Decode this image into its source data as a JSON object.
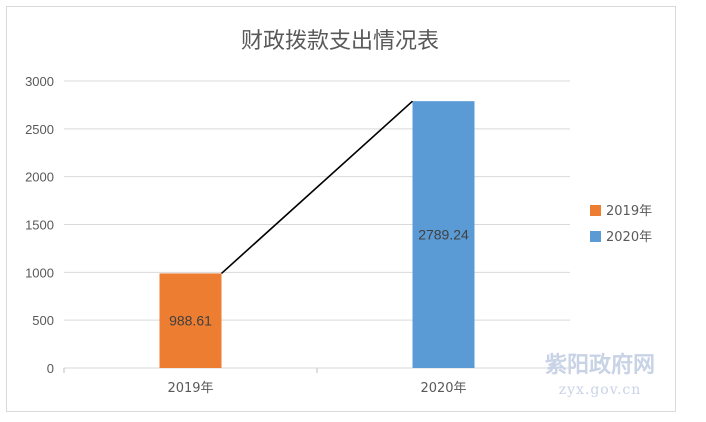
{
  "chart_data": {
    "type": "bar",
    "title": "财政拨款支出情况表",
    "categories": [
      "2019年",
      "2020年"
    ],
    "series": [
      {
        "name": "2019年",
        "values": [
          988.61,
          null
        ],
        "color": "#ed7d31",
        "data_label": "988.61"
      },
      {
        "name": "2020年",
        "values": [
          null,
          2789.24
        ],
        "color": "#5b9bd5",
        "data_label": "2789.24"
      }
    ],
    "trend_line": {
      "from": 988.61,
      "to": 2789.24,
      "color": "#000000"
    },
    "ylim": [
      0,
      3000
    ],
    "yticks": [
      0,
      500,
      1000,
      1500,
      2000,
      2500,
      3000
    ],
    "ytick_labels": [
      "0",
      "500",
      "1000",
      "1500",
      "2000",
      "2500",
      "3000"
    ],
    "xlabel": "",
    "ylabel": "",
    "grid": true,
    "legend_position": "right"
  },
  "watermark": {
    "name": "紫阳政府网",
    "domain": "zyx.gov.cn"
  }
}
